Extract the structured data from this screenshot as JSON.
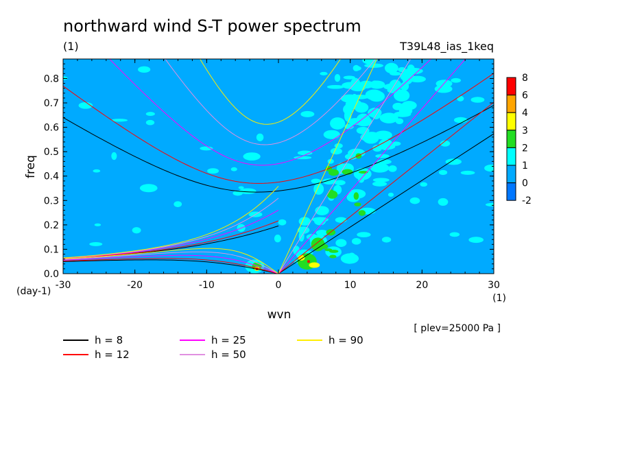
{
  "chart_data": {
    "type": "heatmap",
    "title": "northward wind S-T power spectrum",
    "subtitle_left": "(1)",
    "subtitle_right": "T39L48_ias_1keq",
    "xlabel": "wvn",
    "ylabel": "freq",
    "x_unit": "(1)",
    "y_unit": "(day-1)",
    "annotation": "[ plev=25000 Pa ]",
    "xlim": [
      -30,
      30
    ],
    "ylim": [
      0,
      0.88
    ],
    "xticks": [
      -30,
      -20,
      -10,
      0,
      10,
      20,
      30
    ],
    "yticks": [
      0.0,
      0.1,
      0.2,
      0.3,
      0.4,
      0.5,
      0.6,
      0.7,
      0.8
    ],
    "x_ticklabels": [
      "-30",
      "-20",
      "-10",
      "0",
      "10",
      "20",
      "30"
    ],
    "y_ticklabels": [
      "0.0",
      "0.1",
      "0.2",
      "0.3",
      "0.4",
      "0.5",
      "0.6",
      "0.7",
      "0.8"
    ],
    "colorbar": {
      "labels": [
        "8",
        "6",
        "4",
        "3",
        "2",
        "1",
        "0",
        "-2"
      ],
      "colors": [
        "#ff0000",
        "#ffa500",
        "#ffff00",
        "#22dd22",
        "#00ffff",
        "#00aaff",
        "#0077ff"
      ]
    },
    "background_color": "#00aaff",
    "curves": [
      {
        "label": "h = 8",
        "h": 8,
        "color": "#000000"
      },
      {
        "label": "h = 12",
        "h": 12,
        "color": "#ff0000"
      },
      {
        "label": "h = 25",
        "h": 25,
        "color": "#ff00ff"
      },
      {
        "label": "h = 50",
        "h": 50,
        "color": "#e090e0"
      },
      {
        "label": "h = 90",
        "h": 90,
        "color": "#ffee00"
      }
    ]
  }
}
